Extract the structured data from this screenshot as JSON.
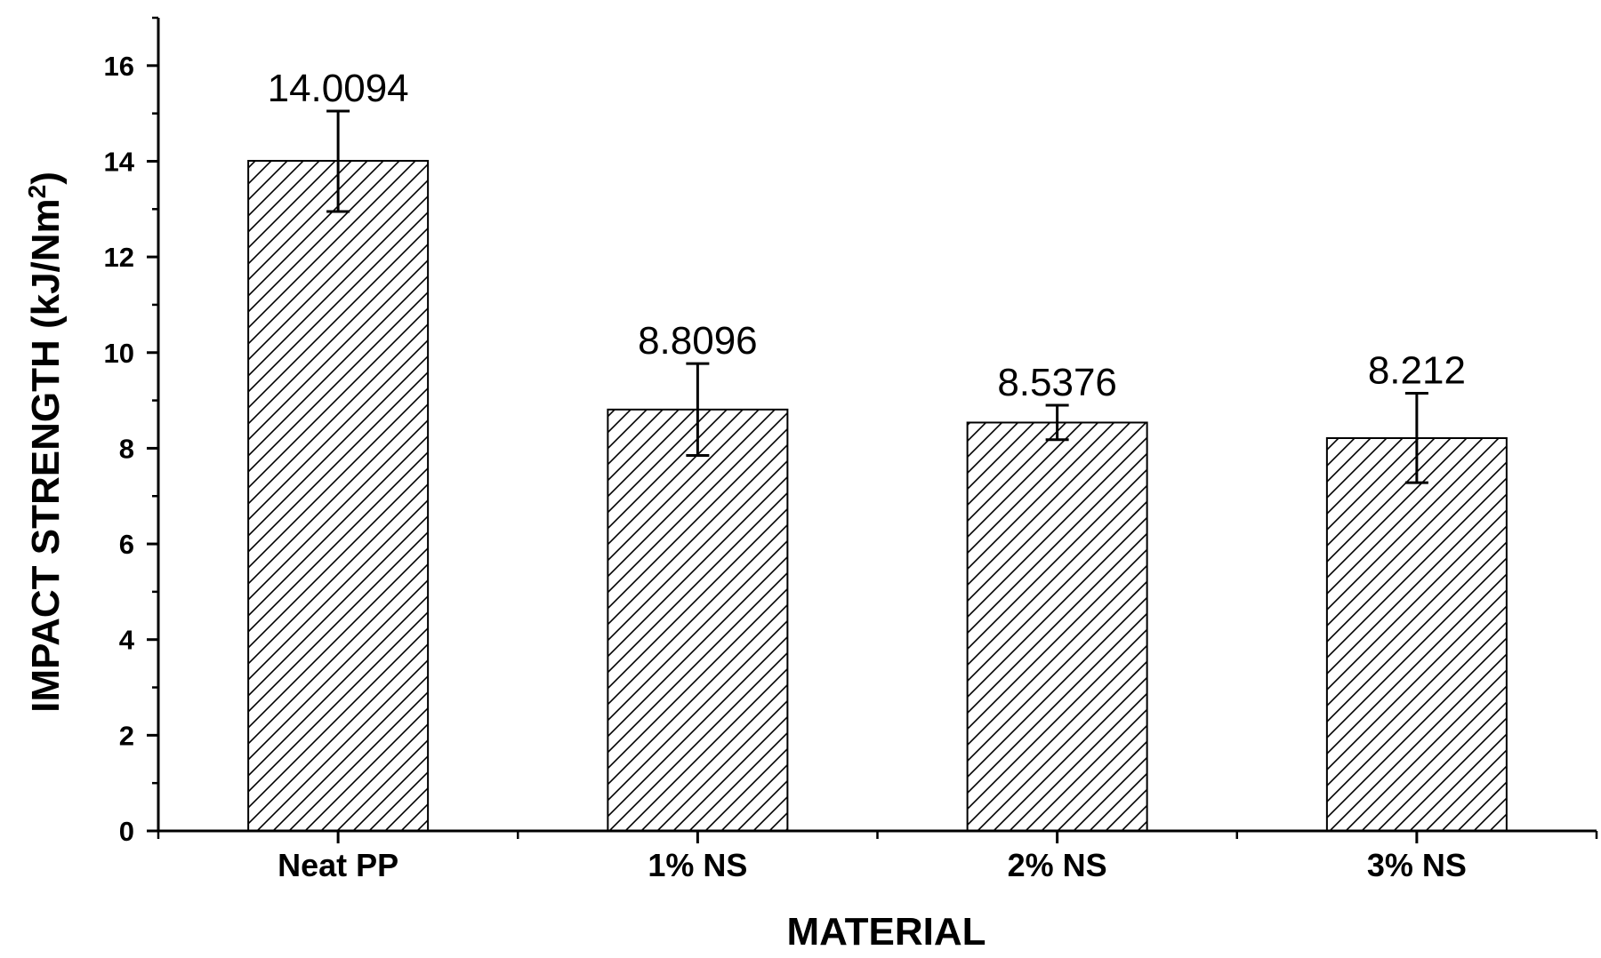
{
  "chart_data": {
    "type": "bar",
    "xlabel": "MATERIAL",
    "ylabel": "IMPACT STRENGTH (kJ/Nm²)",
    "categories": [
      "Neat PP",
      "1% NS",
      "2% NS",
      "3% NS"
    ],
    "values": [
      14.0094,
      8.8096,
      8.5376,
      8.212
    ],
    "value_labels": [
      "14.0094",
      "8.8096",
      "8.5376",
      "8.212"
    ],
    "error_low": [
      12.95,
      7.85,
      8.18,
      7.28
    ],
    "error_high": [
      15.05,
      9.77,
      8.9,
      9.15
    ],
    "ylim": [
      0,
      17
    ],
    "yticks": [
      0,
      2,
      4,
      6,
      8,
      10,
      12,
      14,
      16
    ],
    "ytick_labels": [
      "0",
      "2",
      "4",
      "6",
      "8",
      "10",
      "12",
      "14",
      "16"
    ],
    "fill_pattern": "diagonal-hatch",
    "bar_color": "#000000",
    "grid": false,
    "legend": "none"
  }
}
